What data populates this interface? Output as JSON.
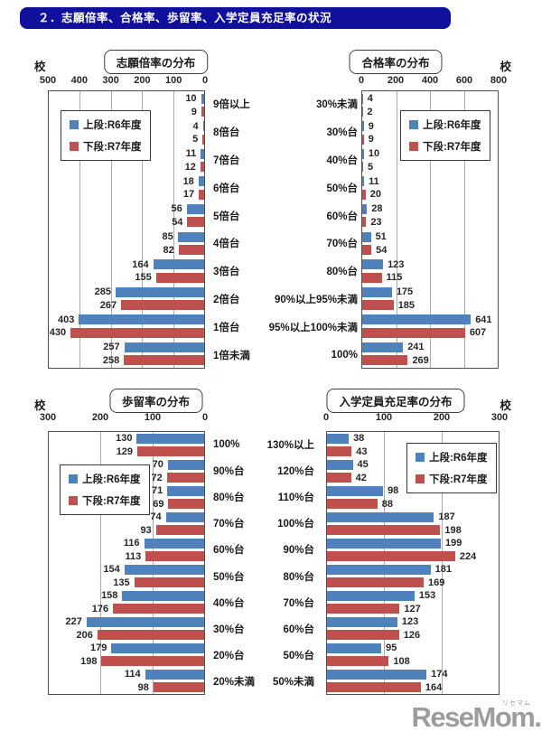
{
  "page": {
    "header": "２．志願倍率、合格率、歩留率、入学定員充足率の状況"
  },
  "colors": {
    "series1": "#4F81BD",
    "series2": "#C0504D",
    "header_bg": "#10109c",
    "gridline": "#ababab"
  },
  "logo": {
    "text": "ReseMom",
    "dot": ".",
    "ruby": "リセマム"
  },
  "chart_data": [
    {
      "type": "bar",
      "orientation": "horizontal",
      "direction": "left",
      "title": "志願倍率の分布",
      "unit": "校",
      "xlim": [
        0,
        500
      ],
      "ticks": [
        500,
        400,
        300,
        200,
        100,
        0
      ],
      "grid": true,
      "legend_position": "upper-left-inside",
      "categories": [
        "9倍以上",
        "8倍台",
        "7倍台",
        "6倍台",
        "5倍台",
        "4倍台",
        "3倍台",
        "2倍台",
        "1倍台",
        "1倍未満"
      ],
      "series": [
        {
          "name": "上段:R6年度",
          "color": "#4F81BD",
          "values": [
            10,
            4,
            11,
            18,
            56,
            85,
            164,
            285,
            403,
            257
          ]
        },
        {
          "name": "下段:R7年度",
          "color": "#C0504D",
          "values": [
            9,
            5,
            12,
            17,
            54,
            82,
            155,
            267,
            430,
            258
          ]
        }
      ]
    },
    {
      "type": "bar",
      "orientation": "horizontal",
      "direction": "right",
      "title": "合格率の分布",
      "unit": "校",
      "xlim": [
        0,
        800
      ],
      "ticks": [
        0,
        200,
        400,
        600,
        800
      ],
      "grid": true,
      "legend_position": "upper-left-inside",
      "categories": [
        "30%未満",
        "30%台",
        "40%台",
        "50%台",
        "60%台",
        "70%台",
        "80%台",
        "90%以上95%未満",
        "95%以上100%未満",
        "100%"
      ],
      "series": [
        {
          "name": "上段:R6年度",
          "color": "#4F81BD",
          "values": [
            4,
            9,
            10,
            11,
            28,
            51,
            123,
            175,
            641,
            241
          ]
        },
        {
          "name": "下段:R7年度",
          "color": "#C0504D",
          "values": [
            2,
            9,
            5,
            20,
            23,
            54,
            115,
            185,
            607,
            269
          ]
        }
      ]
    },
    {
      "type": "bar",
      "orientation": "horizontal",
      "direction": "left",
      "title": "歩留率の分布",
      "unit": "校",
      "xlim": [
        0,
        300
      ],
      "ticks": [
        300,
        200,
        100,
        0
      ],
      "grid": true,
      "legend_position": "upper-left-inside",
      "categories": [
        "100%",
        "90%台",
        "80%台",
        "70%台",
        "60%台",
        "50%台",
        "40%台",
        "30%台",
        "20%台",
        "20%未満"
      ],
      "series": [
        {
          "name": "上段:R6年度",
          "color": "#4F81BD",
          "values": [
            130,
            70,
            71,
            74,
            116,
            154,
            158,
            227,
            179,
            114
          ]
        },
        {
          "name": "下段:R7年度",
          "color": "#C0504D",
          "values": [
            129,
            72,
            69,
            93,
            113,
            135,
            176,
            206,
            198,
            98
          ]
        }
      ]
    },
    {
      "type": "bar",
      "orientation": "horizontal",
      "direction": "right",
      "title": "入学定員充足率の分布",
      "unit": "校",
      "xlim": [
        0,
        300
      ],
      "ticks": [
        0,
        100,
        200,
        300
      ],
      "grid": true,
      "legend_position": "upper-right-inside",
      "categories": [
        "130%以上",
        "120%台",
        "110%台",
        "100%台",
        "90%台",
        "80%台",
        "70%台",
        "60%台",
        "50%台",
        "50%未満"
      ],
      "series": [
        {
          "name": "上段:R6年度",
          "color": "#4F81BD",
          "values": [
            38,
            45,
            98,
            187,
            199,
            181,
            153,
            123,
            95,
            174
          ]
        },
        {
          "name": "下段:R7年度",
          "color": "#C0504D",
          "values": [
            43,
            42,
            88,
            198,
            224,
            169,
            127,
            126,
            108,
            164
          ]
        }
      ]
    }
  ]
}
